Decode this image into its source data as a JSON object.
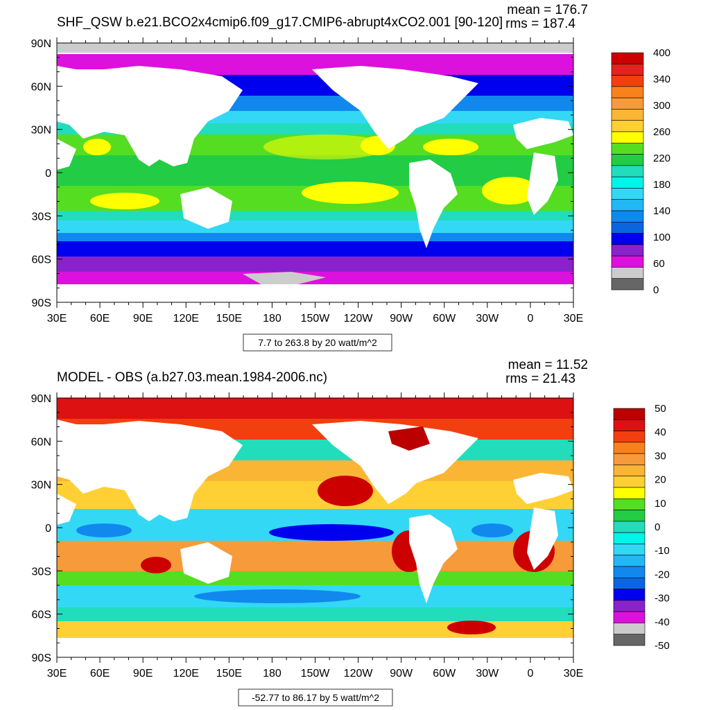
{
  "panels": [
    {
      "title": "SHF_QSW b.e21.BCO2x4cmip6.f09_g17.CMIP6-abrupt4xCO2.001 [90-120]",
      "mean": "mean = 176.7",
      "rms": "rms = 187.4",
      "lat_labels": [
        "90N",
        "60N",
        "30N",
        "0",
        "30S",
        "60S",
        "90S"
      ],
      "lon_labels": [
        "30E",
        "60E",
        "90E",
        "120E",
        "150E",
        "180",
        "150W",
        "120W",
        "90W",
        "60W",
        "30W",
        "0",
        "30E"
      ],
      "info": "7.7 to 263.8 by 20 watt/m^2",
      "colorbar": {
        "colors": [
          "#cc0000",
          "#e3231e",
          "#f23f0f",
          "#f7821c",
          "#f79a39",
          "#fbb535",
          "#ffd033",
          "#ffff00",
          "#55dd22",
          "#22cc44",
          "#22ddbb",
          "#00f5e8",
          "#33d8f5",
          "#22b8f5",
          "#1188ee",
          "#0a66e0",
          "#0000ee",
          "#8a22cc",
          "#dd11dd",
          "#cccccc",
          "#666666"
        ],
        "labels": [
          "400",
          "340",
          "300",
          "260",
          "220",
          "180",
          "140",
          "100",
          "60",
          "0"
        ]
      }
    },
    {
      "title": "MODEL - OBS (a.b27.03.mean.1984-2006.nc)",
      "mean": "mean = 11.52",
      "rms": "rms = 21.43",
      "lat_labels": [
        "90N",
        "60N",
        "30N",
        "0",
        "30S",
        "60S",
        "90S"
      ],
      "lon_labels": [
        "30E",
        "60E",
        "90E",
        "120E",
        "150E",
        "180",
        "150W",
        "120W",
        "90W",
        "60W",
        "30W",
        "0",
        "30E"
      ],
      "info": "-52.77 to 86.17 by 5 watt/m^2",
      "colorbar": {
        "colors": [
          "#bb0000",
          "#dd1111",
          "#f23f0f",
          "#f7821c",
          "#f79a39",
          "#fbb535",
          "#ffd033",
          "#ffff00",
          "#55dd22",
          "#22cc44",
          "#22ddbb",
          "#00f5e8",
          "#33d8f5",
          "#22b8f5",
          "#1188ee",
          "#0a66e0",
          "#0000ee",
          "#8a22cc",
          "#dd11dd",
          "#cccccc",
          "#666666"
        ],
        "labels": [
          "50",
          "40",
          "30",
          "20",
          "10",
          "0",
          "-10",
          "-20",
          "-30",
          "-40",
          "-50"
        ]
      }
    }
  ]
}
